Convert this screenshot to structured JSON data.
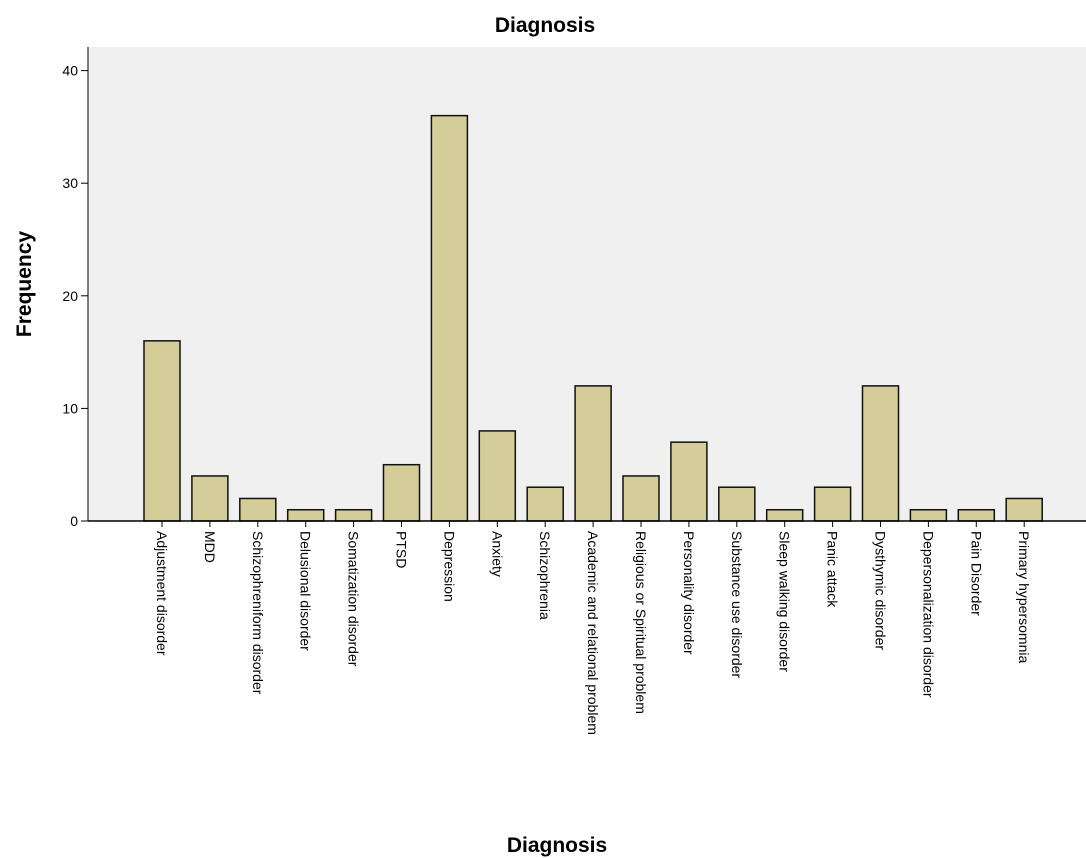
{
  "chart_data": {
    "type": "bar",
    "title": "Diagnosis",
    "xlabel": "Diagnosis",
    "ylabel": "Frequency",
    "ylim": [
      0,
      42
    ],
    "yticks": [
      "0",
      "10",
      "20",
      "30",
      "40"
    ],
    "grid": false,
    "plot_background": "#f0f0f0",
    "bar_color": "#d4cd9a",
    "categories": [
      "Adjustment disorder",
      "MDD",
      "Schizophreniform disorder",
      "Delusional disorder",
      "Somatization disorder",
      "PTSD",
      "Depression",
      "Anxiety",
      "Schizophrenia",
      "Academic and relational problem",
      "Religious or Spiritual problem",
      "Personality disorder",
      "Substance use disorder",
      "Sleep walking disorder",
      "Panic attack",
      "Dysthymic disorder",
      "Depersonalization disorder",
      "Pain Disorder",
      "Primary hypersomnia"
    ],
    "values": [
      16,
      4,
      2,
      1,
      1,
      5,
      36,
      8,
      3,
      12,
      4,
      7,
      3,
      1,
      3,
      12,
      1,
      1,
      2
    ]
  }
}
